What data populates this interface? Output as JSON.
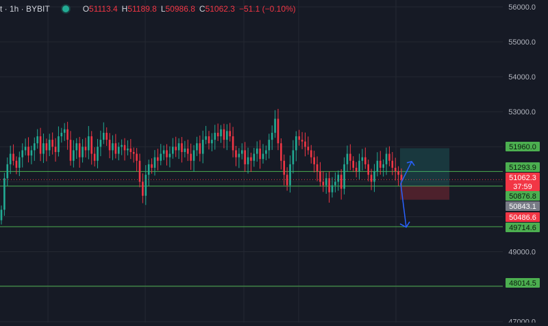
{
  "header": {
    "symbol": "t · 1h · BYBIT",
    "open_label": "O",
    "open": "51113.4",
    "high_label": "H",
    "high": "51189.8",
    "low_label": "L",
    "low": "50986.8",
    "close_label": "C",
    "close": "51062.3",
    "change": "−51.1 (−0.10%)"
  },
  "colors": {
    "background": "#161a25",
    "grid": "#242832",
    "up": "#22ab94",
    "down": "#f23645",
    "level_line": "#4caf50",
    "arrow": "#2962ff",
    "text": "#d1d4dc",
    "axis_text": "#b2b5be"
  },
  "chart_data": {
    "type": "candlestick",
    "y_axis": {
      "range": [
        47000,
        56200
      ],
      "ticks": [
        "56000.0",
        "55000.0",
        "54000.0",
        "53000.0",
        "49000.0",
        "47000.0"
      ]
    },
    "horizontal_levels": [
      51960.0,
      51293.9,
      50876.8,
      49714.6,
      48014.5
    ],
    "price_labels": [
      {
        "text": "51960.0",
        "value": 51960.0,
        "color": "#4caf50"
      },
      {
        "text": "51293.9",
        "value": 51293.9,
        "color": "#4caf50"
      },
      {
        "text": "51062.3",
        "value": 51062.3,
        "color": "#f23645"
      },
      {
        "text": "37:59",
        "value": 50820,
        "color": "#f23645"
      },
      {
        "text": "50876.8",
        "value": 50876.8,
        "color": "#4caf50"
      },
      {
        "text": "50843.1",
        "value": 50843.1,
        "color": "#787b86"
      },
      {
        "text": "50486.6",
        "value": 50486.6,
        "color": "#f23645"
      },
      {
        "text": "49714.6",
        "value": 49714.6,
        "color": "#4caf50"
      },
      {
        "text": "48014.5",
        "value": 48014.5,
        "color": "#4caf50"
      }
    ],
    "current_price": 51062.3,
    "position_tool": {
      "entry": 50876.8,
      "target": 51960.0,
      "stop": 50486.6
    },
    "close_series": [
      50200,
      51100,
      51500,
      51800,
      51600,
      51400,
      51700,
      51900,
      52000,
      51750,
      51900,
      52100,
      52300,
      51800,
      52100,
      51900,
      52200,
      52000,
      51850,
      52300,
      52400,
      52500,
      52200,
      51600,
      51900,
      52100,
      51700,
      52000,
      51900,
      52300,
      51800,
      51600,
      52000,
      52200,
      52400,
      52200,
      51900,
      52100,
      51800,
      52000,
      52050,
      51900,
      51950,
      51850,
      51800,
      51600,
      51000,
      50600,
      51200,
      51500,
      51400,
      51700,
      51600,
      51800,
      51900,
      51700,
      51800,
      52000,
      51900,
      52100,
      51850,
      51950,
      51800,
      51600,
      51900,
      52100,
      51800,
      52200,
      52300,
      52100,
      52200,
      52400,
      52300,
      52500,
      52200,
      52450,
      52300,
      51900,
      51700,
      51800,
      51900,
      51500,
      51700,
      51600,
      51800,
      51950,
      51650,
      51800,
      51900,
      52200,
      52400,
      52800,
      52100,
      51600,
      51200,
      50900,
      51500,
      51900,
      52300,
      52200,
      52150,
      52000,
      51900,
      51700,
      51500,
      51300,
      51000,
      50900,
      51100,
      50700,
      50900,
      51000,
      51200,
      50800,
      51500,
      51800,
      51600,
      51400,
      51300,
      51600,
      51700,
      51500,
      51200,
      51000,
      51300,
      51600,
      51400,
      51500,
      51800,
      51600,
      51400,
      51300,
      51200,
      51062
    ]
  }
}
